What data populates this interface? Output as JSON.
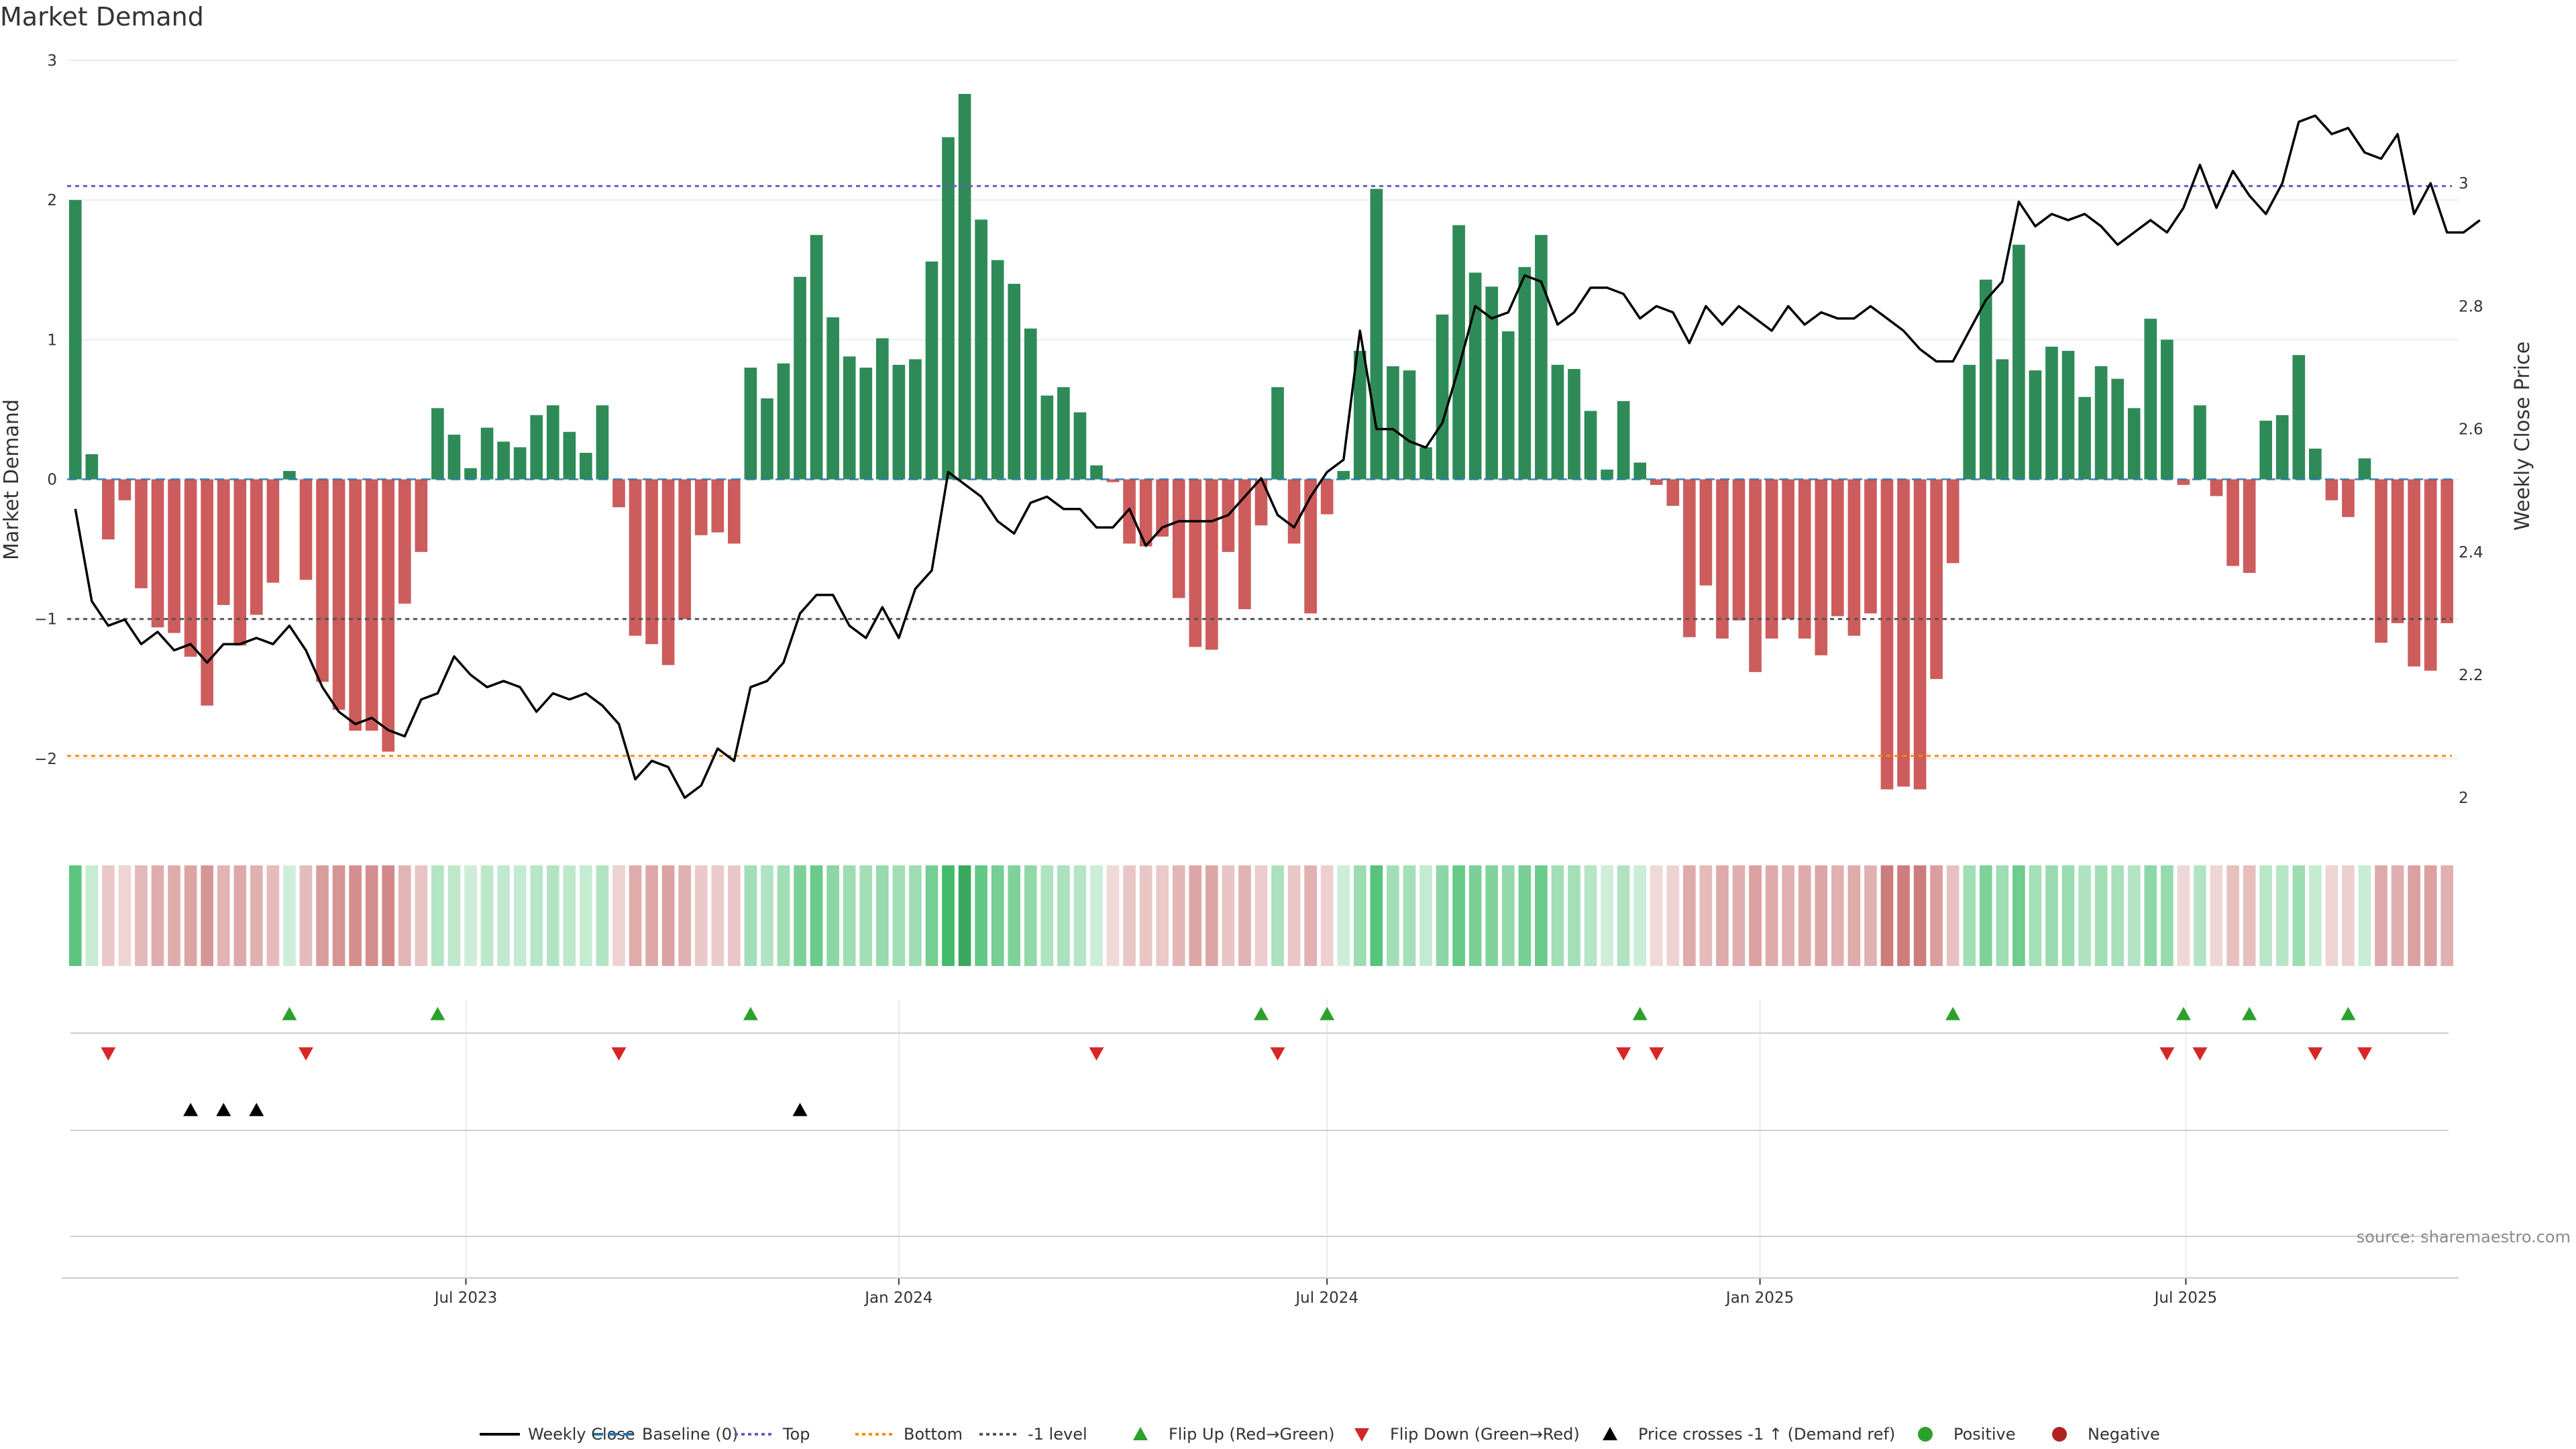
{
  "chart_data": {
    "type": "bar",
    "title": "Market Demand",
    "ylabel_left": "Market Demand",
    "ylabel_right": "Weekly Close Price",
    "ylim_left": [
      -2.5,
      3.0
    ],
    "ylim_right": [
      1.95,
      3.2
    ],
    "yticks_left": [
      3,
      2,
      1,
      0,
      -1,
      -2
    ],
    "yticks_left_labels": [
      "3",
      "2",
      "1",
      "0",
      "−1",
      "−2"
    ],
    "yticks_right": [
      3,
      2.8,
      2.6,
      2.4,
      2.2,
      2
    ],
    "yticks_right_labels": [
      "3",
      "2.8",
      "2.6",
      "2.4",
      "2.2",
      "2"
    ],
    "x_start": "2023-01-16",
    "x_step_weeks": 1,
    "xtick_dates": [
      "2023-07-01",
      "2024-01-01",
      "2024-07-01",
      "2025-01-01",
      "2025-07-01"
    ],
    "xtick_labels": [
      "Jul 2023",
      "Jan 2024",
      "Jul 2024",
      "Jan 2025",
      "Jul 2025"
    ],
    "reference_lines": {
      "top": 2.1,
      "bottom": -1.98,
      "minus_one": -1.0,
      "baseline": 0
    },
    "colors": {
      "positive": "#2e8b57",
      "negative": "#cd5c5c",
      "price": "#000000",
      "top_line": "#6a5acd",
      "bottom_line": "#ff8c00",
      "minus_one_line": "#555555",
      "baseline": "#1f77b4",
      "flip_up": "#2ca02c",
      "flip_down": "#d62728",
      "cross_up": "#000000",
      "legend_positive": "#2ca02c",
      "legend_negative": "#b22222"
    },
    "series": [
      {
        "name": "Market Demand",
        "values": [
          2.0,
          0.18,
          -0.43,
          -0.15,
          -0.78,
          -1.06,
          -1.1,
          -1.27,
          -1.62,
          -0.9,
          -1.19,
          -0.97,
          -0.74,
          0.06,
          -0.72,
          -1.45,
          -1.65,
          -1.8,
          -1.8,
          -1.95,
          -0.89,
          -0.52,
          0.51,
          0.32,
          0.08,
          0.37,
          0.27,
          0.23,
          0.46,
          0.53,
          0.34,
          0.19,
          0.53,
          -0.2,
          -1.12,
          -1.18,
          -1.33,
          -1.0,
          -0.4,
          -0.38,
          -0.46,
          0.8,
          0.58,
          0.83,
          1.45,
          1.75,
          1.16,
          0.88,
          0.8,
          1.01,
          0.82,
          0.86,
          1.56,
          2.45,
          2.76,
          1.86,
          1.57,
          1.4,
          1.08,
          0.6,
          0.66,
          0.48,
          0.1,
          -0.02,
          -0.46,
          -0.48,
          -0.41,
          -0.85,
          -1.2,
          -1.22,
          -0.52,
          -0.93,
          -0.33,
          0.66,
          -0.46,
          -0.96,
          -0.25,
          0.06,
          0.92,
          2.08,
          0.81,
          0.78,
          0.23,
          1.18,
          1.82,
          1.48,
          1.38,
          1.06,
          1.52,
          1.75,
          0.82,
          0.79,
          0.49,
          0.07,
          0.56,
          0.12,
          -0.04,
          -0.19,
          -1.13,
          -0.76,
          -1.14,
          -1.01,
          -1.38,
          -1.14,
          -1.0,
          -1.14,
          -1.26,
          -0.98,
          -1.12,
          -0.96,
          -2.22,
          -2.2,
          -2.22,
          -1.43,
          -0.6,
          0.82,
          1.43,
          0.86,
          1.68,
          0.78,
          0.95,
          0.92,
          0.59,
          0.81,
          0.72,
          0.51,
          1.15,
          1.0,
          -0.04,
          0.53,
          -0.12,
          -0.62,
          -0.67,
          0.42,
          0.46,
          0.89,
          0.22,
          -0.15,
          -0.27,
          0.15,
          -1.17,
          -1.03,
          -1.34,
          -1.37,
          -1.03
        ]
      },
      {
        "name": "Weekly Close",
        "values": [
          2.47,
          2.32,
          2.28,
          2.29,
          2.25,
          2.27,
          2.24,
          2.25,
          2.22,
          2.25,
          2.25,
          2.26,
          2.25,
          2.28,
          2.24,
          2.18,
          2.14,
          2.12,
          2.13,
          2.11,
          2.1,
          2.16,
          2.17,
          2.23,
          2.2,
          2.18,
          2.19,
          2.18,
          2.14,
          2.17,
          2.16,
          2.17,
          2.15,
          2.12,
          2.03,
          2.06,
          2.05,
          2.0,
          2.02,
          2.08,
          2.06,
          2.18,
          2.19,
          2.22,
          2.3,
          2.33,
          2.33,
          2.28,
          2.26,
          2.31,
          2.26,
          2.34,
          2.37,
          2.53,
          2.51,
          2.49,
          2.45,
          2.43,
          2.48,
          2.49,
          2.47,
          2.47,
          2.44,
          2.44,
          2.47,
          2.41,
          2.44,
          2.45,
          2.45,
          2.45,
          2.46,
          2.49,
          2.52,
          2.46,
          2.44,
          2.49,
          2.53,
          2.55,
          2.76,
          2.6,
          2.6,
          2.58,
          2.57,
          2.61,
          2.7,
          2.8,
          2.78,
          2.79,
          2.85,
          2.84,
          2.77,
          2.79,
          2.83,
          2.83,
          2.82,
          2.78,
          2.8,
          2.79,
          2.74,
          2.8,
          2.77,
          2.8,
          2.78,
          2.76,
          2.8,
          2.77,
          2.79,
          2.78,
          2.78,
          2.8,
          2.78,
          2.76,
          2.73,
          2.71,
          2.71,
          2.76,
          2.81,
          2.84,
          2.97,
          2.93,
          2.95,
          2.94,
          2.95,
          2.93,
          2.9,
          2.92,
          2.94,
          2.92,
          2.96,
          3.03,
          2.96,
          3.02,
          2.98,
          2.95,
          3.0,
          3.1,
          3.11,
          3.08,
          3.09,
          3.05,
          3.04,
          3.08,
          2.95,
          3.0,
          2.92,
          2.92,
          2.94
        ]
      }
    ],
    "markers": {
      "flip_up_weeks": [
        13,
        22,
        41,
        72,
        76,
        95,
        114,
        128,
        132,
        138
      ],
      "flip_down_weeks": [
        2,
        14,
        33,
        62,
        73,
        94,
        96,
        127,
        129,
        136,
        139
      ],
      "cross_up_weeks": [
        7,
        9,
        11,
        44
      ]
    },
    "legend": [
      {
        "label": "Weekly Close",
        "style": "line-solid"
      },
      {
        "label": "Baseline (0)",
        "style": "line-dashed"
      },
      {
        "label": "Top",
        "style": "line-dotted-top"
      },
      {
        "label": "Bottom",
        "style": "line-dotted-bottom"
      },
      {
        "label": "-1 level",
        "style": "line-dotted-minus"
      },
      {
        "label": "Flip Up (Red→Green)",
        "style": "tri-up-green"
      },
      {
        "label": "Flip Down (Green→Red)",
        "style": "tri-down-red"
      },
      {
        "label": "Price crosses -1 ↑ (Demand ref)",
        "style": "tri-up-black"
      },
      {
        "label": "Positive",
        "style": "dot-green"
      },
      {
        "label": "Negative",
        "style": "dot-red"
      }
    ],
    "legend_position": "bottom",
    "grid": true,
    "source": "source: sharemaestro.com"
  }
}
